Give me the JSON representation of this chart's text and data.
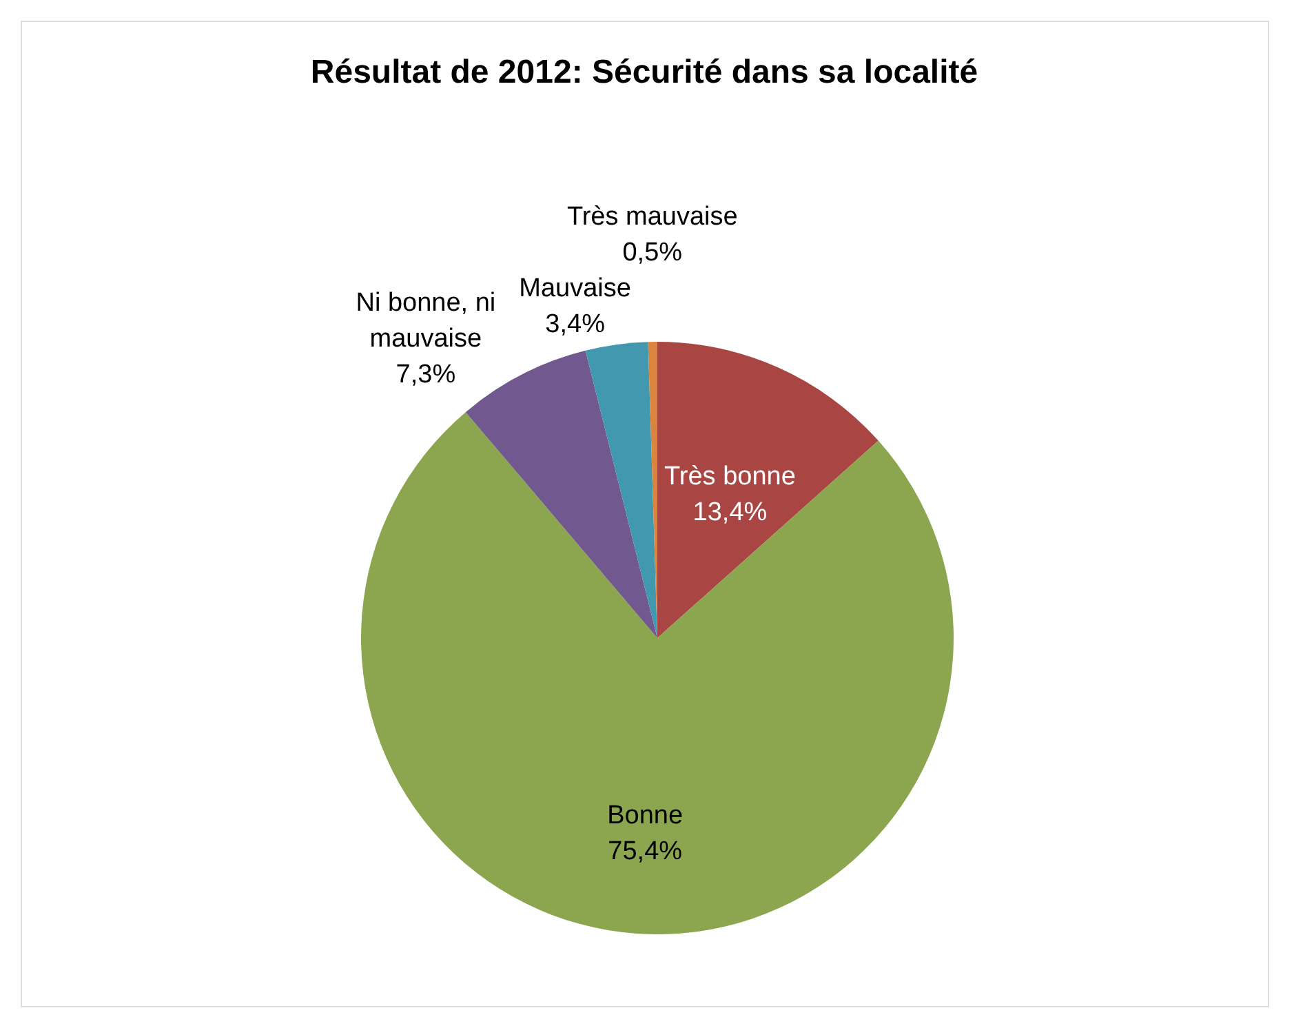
{
  "chart_data": {
    "type": "pie",
    "title": "Résultat de 2012: Sécurité dans sa localité",
    "categories": [
      "Très bonne",
      "Bonne",
      "Ni bonne, ni mauvaise",
      "Mauvaise",
      "Très mauvaise"
    ],
    "values": [
      13.4,
      75.4,
      7.3,
      3.4,
      0.5
    ],
    "value_labels": [
      "13,4%",
      "75,4%",
      "7,3%",
      "3,4%",
      "0,5%"
    ],
    "colors": [
      "#a94543",
      "#8ba64e",
      "#71588f",
      "#4198af",
      "#db843d"
    ],
    "legend": false
  }
}
